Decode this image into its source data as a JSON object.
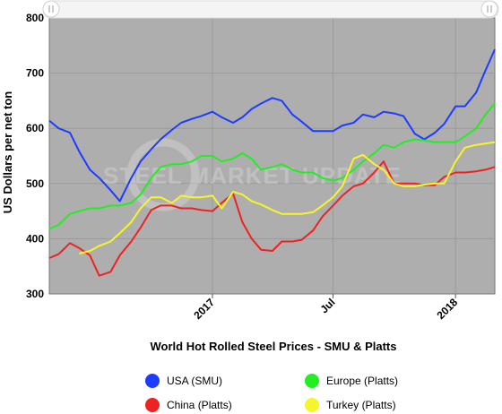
{
  "chart_data": {
    "type": "line",
    "title": "World Hot Rolled Steel Prices - SMU & Platts",
    "ylabel": "US Dollars per net ton",
    "xlabel": "",
    "ylim": [
      300,
      800
    ],
    "yticks": [
      300,
      400,
      500,
      600,
      700,
      800
    ],
    "x_range": [
      "2016-05-01",
      "2018-03-01"
    ],
    "x_ticks": [
      {
        "label": "2017",
        "date": "2017-01-01"
      },
      {
        "label": "Jul",
        "date": "2017-07-01"
      },
      {
        "label": "2018",
        "date": "2018-01-01"
      }
    ],
    "grid": true,
    "watermark": "STEEL MARKET UPDATE",
    "legend_position": "bottom",
    "series": [
      {
        "name": "USA (SMU)",
        "color": "#1e3cff",
        "points": [
          [
            "2016-05-01",
            614
          ],
          [
            "2016-05-15",
            600
          ],
          [
            "2016-06-01",
            592
          ],
          [
            "2016-06-15",
            558
          ],
          [
            "2016-07-01",
            525
          ],
          [
            "2016-07-15",
            510
          ],
          [
            "2016-08-01",
            488
          ],
          [
            "2016-08-15",
            468
          ],
          [
            "2016-09-01",
            510
          ],
          [
            "2016-09-15",
            540
          ],
          [
            "2016-10-01",
            562
          ],
          [
            "2016-10-15",
            580
          ],
          [
            "2016-11-01",
            597
          ],
          [
            "2016-11-15",
            610
          ],
          [
            "2016-12-01",
            617
          ],
          [
            "2016-12-15",
            622
          ],
          [
            "2017-01-01",
            630
          ],
          [
            "2017-01-15",
            620
          ],
          [
            "2017-02-01",
            610
          ],
          [
            "2017-02-15",
            620
          ],
          [
            "2017-03-01",
            635
          ],
          [
            "2017-03-15",
            645
          ],
          [
            "2017-04-01",
            655
          ],
          [
            "2017-04-15",
            650
          ],
          [
            "2017-05-01",
            625
          ],
          [
            "2017-05-15",
            612
          ],
          [
            "2017-06-01",
            595
          ],
          [
            "2017-06-15",
            595
          ],
          [
            "2017-07-01",
            595
          ],
          [
            "2017-07-15",
            605
          ],
          [
            "2017-08-01",
            610
          ],
          [
            "2017-08-15",
            625
          ],
          [
            "2017-09-01",
            620
          ],
          [
            "2017-09-15",
            630
          ],
          [
            "2017-10-01",
            627
          ],
          [
            "2017-10-15",
            622
          ],
          [
            "2017-11-01",
            590
          ],
          [
            "2017-11-15",
            580
          ],
          [
            "2017-12-01",
            592
          ],
          [
            "2017-12-15",
            608
          ],
          [
            "2018-01-01",
            640
          ],
          [
            "2018-01-15",
            640
          ],
          [
            "2018-02-01",
            665
          ],
          [
            "2018-02-15",
            705
          ],
          [
            "2018-03-01",
            743
          ]
        ]
      },
      {
        "name": "Europe (Platts)",
        "color": "#22ee22",
        "points": [
          [
            "2016-05-01",
            418
          ],
          [
            "2016-05-15",
            425
          ],
          [
            "2016-06-01",
            445
          ],
          [
            "2016-06-15",
            450
          ],
          [
            "2016-07-01",
            455
          ],
          [
            "2016-07-15",
            455
          ],
          [
            "2016-08-01",
            460
          ],
          [
            "2016-08-15",
            460
          ],
          [
            "2016-09-01",
            465
          ],
          [
            "2016-09-15",
            480
          ],
          [
            "2016-10-01",
            510
          ],
          [
            "2016-10-15",
            530
          ],
          [
            "2016-11-01",
            535
          ],
          [
            "2016-11-15",
            535
          ],
          [
            "2016-12-01",
            540
          ],
          [
            "2016-12-15",
            550
          ],
          [
            "2017-01-01",
            550
          ],
          [
            "2017-01-15",
            540
          ],
          [
            "2017-02-01",
            545
          ],
          [
            "2017-02-15",
            555
          ],
          [
            "2017-03-01",
            545
          ],
          [
            "2017-03-15",
            525
          ],
          [
            "2017-04-01",
            530
          ],
          [
            "2017-04-15",
            535
          ],
          [
            "2017-05-01",
            525
          ],
          [
            "2017-05-15",
            520
          ],
          [
            "2017-06-01",
            520
          ],
          [
            "2017-06-15",
            510
          ],
          [
            "2017-07-01",
            505
          ],
          [
            "2017-07-15",
            510
          ],
          [
            "2017-08-01",
            525
          ],
          [
            "2017-08-15",
            540
          ],
          [
            "2017-09-01",
            555
          ],
          [
            "2017-09-15",
            570
          ],
          [
            "2017-10-01",
            565
          ],
          [
            "2017-10-15",
            575
          ],
          [
            "2017-11-01",
            580
          ],
          [
            "2017-11-15",
            578
          ],
          [
            "2017-12-01",
            575
          ],
          [
            "2017-12-15",
            575
          ],
          [
            "2018-01-01",
            575
          ],
          [
            "2018-01-15",
            585
          ],
          [
            "2018-02-01",
            600
          ],
          [
            "2018-02-15",
            625
          ],
          [
            "2018-03-01",
            645
          ]
        ]
      },
      {
        "name": "China (Platts)",
        "color": "#ee2222",
        "points": [
          [
            "2016-05-01",
            365
          ],
          [
            "2016-05-15",
            372
          ],
          [
            "2016-06-01",
            392
          ],
          [
            "2016-06-15",
            383
          ],
          [
            "2016-07-01",
            370
          ],
          [
            "2016-07-15",
            333
          ],
          [
            "2016-08-01",
            340
          ],
          [
            "2016-08-15",
            370
          ],
          [
            "2016-09-01",
            395
          ],
          [
            "2016-09-15",
            420
          ],
          [
            "2016-10-01",
            452
          ],
          [
            "2016-10-15",
            460
          ],
          [
            "2016-11-01",
            460
          ],
          [
            "2016-11-15",
            455
          ],
          [
            "2016-12-01",
            455
          ],
          [
            "2016-12-15",
            452
          ],
          [
            "2017-01-01",
            450
          ],
          [
            "2017-01-15",
            465
          ],
          [
            "2017-02-01",
            482
          ],
          [
            "2017-02-15",
            430
          ],
          [
            "2017-03-01",
            400
          ],
          [
            "2017-03-15",
            380
          ],
          [
            "2017-04-01",
            378
          ],
          [
            "2017-04-15",
            395
          ],
          [
            "2017-05-01",
            395
          ],
          [
            "2017-05-15",
            398
          ],
          [
            "2017-06-01",
            415
          ],
          [
            "2017-06-15",
            440
          ],
          [
            "2017-07-01",
            460
          ],
          [
            "2017-07-15",
            478
          ],
          [
            "2017-08-01",
            495
          ],
          [
            "2017-08-15",
            500
          ],
          [
            "2017-09-01",
            520
          ],
          [
            "2017-09-15",
            540
          ],
          [
            "2017-10-01",
            500
          ],
          [
            "2017-10-15",
            500
          ],
          [
            "2017-11-01",
            500
          ],
          [
            "2017-11-15",
            497
          ],
          [
            "2017-12-01",
            497
          ],
          [
            "2017-12-15",
            512
          ],
          [
            "2018-01-01",
            520
          ],
          [
            "2018-01-15",
            520
          ],
          [
            "2018-02-01",
            522
          ],
          [
            "2018-02-15",
            525
          ],
          [
            "2018-03-01",
            530
          ]
        ]
      },
      {
        "name": "Turkey (Platts)",
        "color": "#f5f52a",
        "points": [
          [
            "2016-06-15",
            373
          ],
          [
            "2016-07-01",
            378
          ],
          [
            "2016-07-15",
            387
          ],
          [
            "2016-08-01",
            395
          ],
          [
            "2016-08-15",
            410
          ],
          [
            "2016-09-01",
            430
          ],
          [
            "2016-09-15",
            455
          ],
          [
            "2016-10-01",
            475
          ],
          [
            "2016-10-15",
            475
          ],
          [
            "2016-11-01",
            465
          ],
          [
            "2016-11-15",
            478
          ],
          [
            "2016-12-01",
            475
          ],
          [
            "2016-12-15",
            475
          ],
          [
            "2017-01-01",
            478
          ],
          [
            "2017-01-15",
            455
          ],
          [
            "2017-02-01",
            485
          ],
          [
            "2017-02-15",
            480
          ],
          [
            "2017-03-01",
            468
          ],
          [
            "2017-03-15",
            462
          ],
          [
            "2017-04-01",
            452
          ],
          [
            "2017-04-15",
            445
          ],
          [
            "2017-05-01",
            445
          ],
          [
            "2017-05-15",
            445
          ],
          [
            "2017-06-01",
            448
          ],
          [
            "2017-06-15",
            460
          ],
          [
            "2017-07-01",
            475
          ],
          [
            "2017-07-15",
            495
          ],
          [
            "2017-08-01",
            545
          ],
          [
            "2017-08-15",
            552
          ],
          [
            "2017-09-01",
            535
          ],
          [
            "2017-09-15",
            525
          ],
          [
            "2017-10-01",
            500
          ],
          [
            "2017-10-15",
            495
          ],
          [
            "2017-11-01",
            495
          ],
          [
            "2017-11-15",
            498
          ],
          [
            "2017-12-01",
            500
          ],
          [
            "2017-12-15",
            500
          ],
          [
            "2018-01-01",
            540
          ],
          [
            "2018-01-15",
            565
          ],
          [
            "2018-02-01",
            570
          ],
          [
            "2018-03-01",
            575
          ]
        ]
      }
    ]
  }
}
